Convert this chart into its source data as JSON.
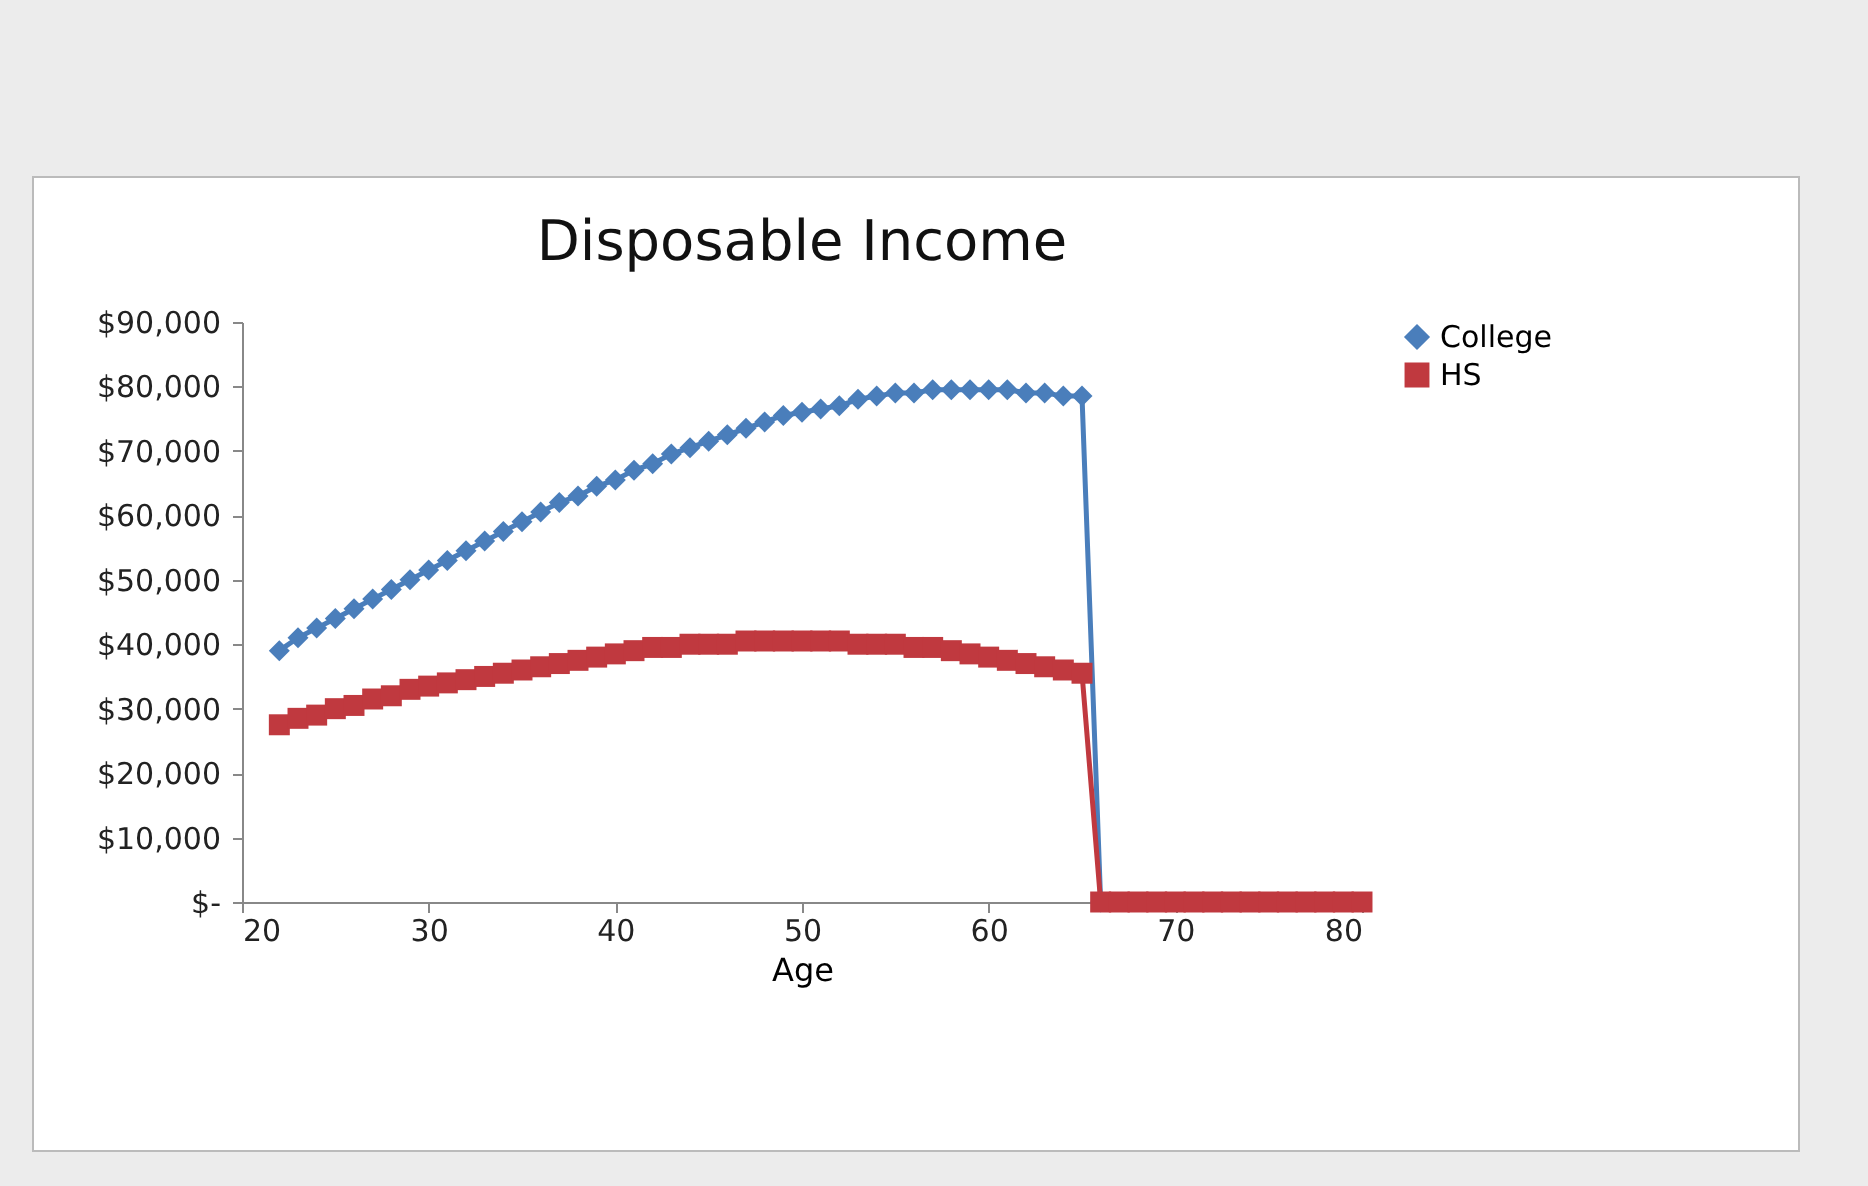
{
  "chart_data": {
    "type": "line",
    "title": "Disposable Income",
    "xlabel": "Age",
    "x": [
      22,
      23,
      24,
      25,
      26,
      27,
      28,
      29,
      30,
      31,
      32,
      33,
      34,
      35,
      36,
      37,
      38,
      39,
      40,
      41,
      42,
      43,
      44,
      45,
      46,
      47,
      48,
      49,
      50,
      51,
      52,
      53,
      54,
      55,
      56,
      57,
      58,
      59,
      60,
      61,
      62,
      63,
      64,
      65,
      66,
      67,
      68,
      69,
      70,
      71,
      72,
      73,
      74,
      75,
      76,
      77,
      78,
      79,
      80
    ],
    "series": [
      {
        "name": "College",
        "color": "#4a7ebb",
        "marker": "diamond",
        "values": [
          39000,
          41000,
          42500,
          44000,
          45500,
          47000,
          48500,
          50000,
          51500,
          53000,
          54500,
          56000,
          57500,
          59000,
          60500,
          62000,
          63000,
          64500,
          65500,
          67000,
          68000,
          69500,
          70500,
          71500,
          72500,
          73500,
          74500,
          75500,
          76000,
          76500,
          77000,
          78000,
          78500,
          79000,
          79000,
          79500,
          79500,
          79500,
          79500,
          79500,
          79000,
          79000,
          78500,
          78500,
          0,
          null,
          null,
          null,
          null,
          null,
          null,
          null,
          null,
          null,
          null,
          null,
          null,
          null,
          null
        ]
      },
      {
        "name": "HS",
        "color": "#c0393f",
        "marker": "square",
        "values": [
          27500,
          28500,
          29000,
          30000,
          30500,
          31500,
          32000,
          33000,
          33500,
          34000,
          34500,
          35000,
          35500,
          36000,
          36500,
          37000,
          37500,
          38000,
          38500,
          39000,
          39500,
          39500,
          40000,
          40000,
          40000,
          40500,
          40500,
          40500,
          40500,
          40500,
          40500,
          40000,
          40000,
          40000,
          39500,
          39500,
          39000,
          38500,
          38000,
          37500,
          37000,
          36500,
          36000,
          35500,
          0,
          0,
          0,
          0,
          0,
          0,
          0,
          0,
          0,
          0,
          0,
          0,
          0,
          0,
          0
        ]
      }
    ],
    "xlim": [
      20,
      80
    ],
    "xticks": [
      20,
      30,
      40,
      50,
      60,
      70,
      80
    ],
    "ylim": [
      0,
      90000
    ],
    "yticks": [
      {
        "value": 0,
        "label": "$-"
      },
      {
        "value": 10000,
        "label": "$10,000"
      },
      {
        "value": 20000,
        "label": "$20,000"
      },
      {
        "value": 30000,
        "label": "$30,000"
      },
      {
        "value": 40000,
        "label": "$40,000"
      },
      {
        "value": 50000,
        "label": "$50,000"
      },
      {
        "value": 60000,
        "label": "$60,000"
      },
      {
        "value": 70000,
        "label": "$70,000"
      },
      {
        "value": 80000,
        "label": "$80,000"
      },
      {
        "value": 90000,
        "label": "$90,000"
      }
    ],
    "legend": "right"
  }
}
